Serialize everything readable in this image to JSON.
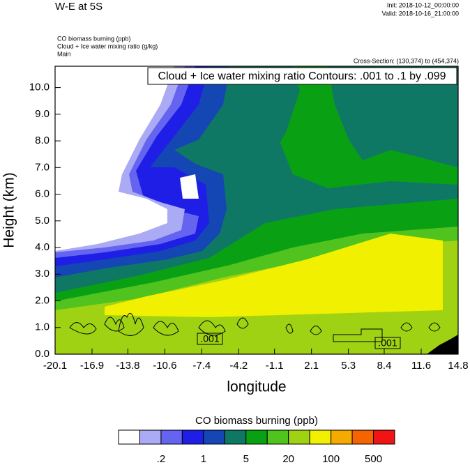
{
  "chart_data": {
    "type": "contour",
    "title": "W-E at 5S",
    "init": "Init: 2018-10-12_00:00:00",
    "valid": "Valid: 2018-10-16_21:00:00",
    "fields": [
      "CO biomass burning   (ppb)",
      "Cloud + Ice water mixing ratio   (g/kg)",
      "Main"
    ],
    "cross_section": "Cross-Section: (130,374) to (454,374)",
    "contour_info": "Cloud + Ice water mixing ratio Contours: .001 to .1 by .099",
    "contour_labels": [
      ".001",
      ".001"
    ],
    "x_label": "longitude",
    "y_label": "Height (km)",
    "xlim": [
      -20.1,
      14.8
    ],
    "xticks": [
      -20.1,
      -16.9,
      -13.8,
      -10.6,
      -7.4,
      -4.2,
      -1.1,
      2.1,
      5.3,
      8.4,
      11.6,
      14.8
    ],
    "ylim": [
      0,
      10.8
    ],
    "yticks": [
      {
        "value": 0,
        "label": "0.0"
      },
      {
        "value": 1,
        "label": "1.0"
      },
      {
        "value": 2,
        "label": "2.0"
      },
      {
        "value": 3,
        "label": "3.0"
      },
      {
        "value": 4,
        "label": "4.0"
      },
      {
        "value": 5,
        "label": "5.0"
      },
      {
        "value": 6,
        "label": "6.0"
      },
      {
        "value": 7,
        "label": "7.0"
      },
      {
        "value": 8,
        "label": "8.0"
      },
      {
        "value": 9,
        "label": "9.0"
      },
      {
        "value": 10,
        "label": "10.0"
      }
    ],
    "colorbar": {
      "title": "CO biomass burning  (ppb)",
      "colors": [
        "#ffffff",
        "#aaaaf5",
        "#6464f0",
        "#1e1ee6",
        "#1446b4",
        "#0f7864",
        "#0aa014",
        "#50c31e",
        "#a0d214",
        "#f0f000",
        "#f5aa00",
        "#f56400",
        "#f01414"
      ],
      "ticks": [
        {
          "value": 0.2,
          "label": ".2"
        },
        1,
        5,
        20,
        100,
        500
      ]
    }
  }
}
